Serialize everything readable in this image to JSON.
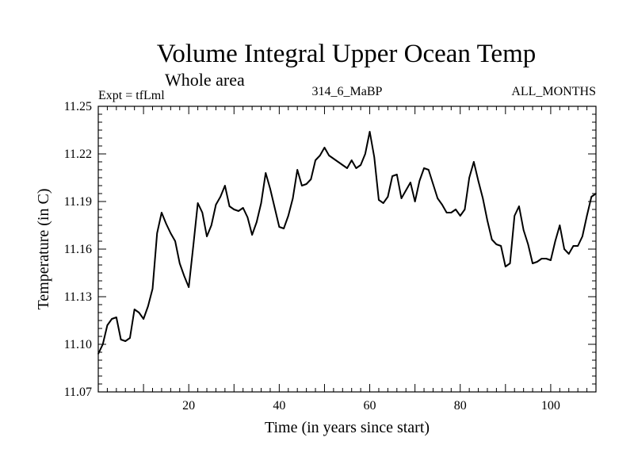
{
  "chart_data": {
    "type": "line",
    "title": "Volume Integral Upper Ocean Temp",
    "subtitle": "Whole area",
    "expt_label": "Expt = tfLml",
    "run_label": "314_6_MaBP",
    "months_label": "ALL_MONTHS",
    "xlabel": "Time (in years since start)",
    "ylabel": "Temperature (in C)",
    "xlim": [
      0,
      110
    ],
    "ylim": [
      11.07,
      11.25
    ],
    "x_ticks": [
      20,
      40,
      60,
      80,
      100
    ],
    "y_ticks": [
      11.07,
      11.1,
      11.13,
      11.16,
      11.19,
      11.22,
      11.25
    ],
    "y_tick_labels": [
      "11.07",
      "11.10",
      "11.13",
      "11.16",
      "11.19",
      "11.22",
      "11.25"
    ],
    "grid": false,
    "series": [
      {
        "name": "Volume Integral Upper Ocean Temp",
        "x": [
          0,
          1,
          2,
          3,
          4,
          5,
          6,
          7,
          8,
          9,
          10,
          11,
          12,
          13,
          14,
          15,
          16,
          17,
          18,
          19,
          20,
          21,
          22,
          23,
          24,
          25,
          26,
          27,
          28,
          29,
          30,
          31,
          32,
          33,
          34,
          35,
          36,
          37,
          38,
          39,
          40,
          41,
          42,
          43,
          44,
          45,
          46,
          47,
          48,
          49,
          50,
          51,
          52,
          53,
          54,
          55,
          56,
          57,
          58,
          59,
          60,
          61,
          62,
          63,
          64,
          65,
          66,
          67,
          68,
          69,
          70,
          71,
          72,
          73,
          74,
          75,
          76,
          77,
          78,
          79,
          80,
          81,
          82,
          83,
          84,
          85,
          86,
          87,
          88,
          89,
          90,
          91,
          92,
          93,
          94,
          95,
          96,
          97,
          98,
          99,
          100,
          101,
          102,
          103,
          104,
          105,
          106,
          107,
          108,
          109,
          110
        ],
        "values": [
          11.094,
          11.1,
          11.112,
          11.116,
          11.117,
          11.103,
          11.102,
          11.104,
          11.122,
          11.12,
          11.116,
          11.124,
          11.135,
          11.17,
          11.183,
          11.176,
          11.17,
          11.165,
          11.151,
          11.143,
          11.136,
          11.162,
          11.189,
          11.183,
          11.168,
          11.175,
          11.188,
          11.193,
          11.2,
          11.187,
          11.185,
          11.184,
          11.186,
          11.18,
          11.169,
          11.177,
          11.189,
          11.208,
          11.198,
          11.186,
          11.174,
          11.173,
          11.181,
          11.192,
          11.21,
          11.2,
          11.201,
          11.204,
          11.216,
          11.219,
          11.224,
          11.219,
          11.217,
          11.215,
          11.213,
          11.211,
          11.216,
          11.211,
          11.213,
          11.22,
          11.234,
          11.218,
          11.191,
          11.189,
          11.193,
          11.206,
          11.207,
          11.192,
          11.197,
          11.202,
          11.19,
          11.203,
          11.211,
          11.21,
          11.201,
          11.192,
          11.188,
          11.183,
          11.183,
          11.185,
          11.181,
          11.185,
          11.205,
          11.215,
          11.203,
          11.192,
          11.178,
          11.166,
          11.163,
          11.162,
          11.149,
          11.151,
          11.181,
          11.187,
          11.172,
          11.163,
          11.151,
          11.152,
          11.154,
          11.154,
          11.153,
          11.165,
          11.175,
          11.16,
          11.157,
          11.162,
          11.162,
          11.168,
          11.181,
          11.193,
          11.195
        ]
      }
    ]
  }
}
